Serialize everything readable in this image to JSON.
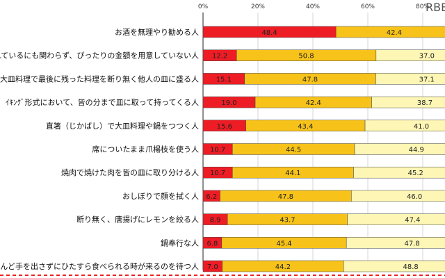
{
  "watermark": "RBB",
  "chart_data": {
    "type": "bar",
    "orientation": "horizontal",
    "stacked": true,
    "percent_stacked": true,
    "categories": [
      "お酒を無理やり勧める人",
      "れているにも関わらず、ぴったりの金額を用意していない人",
      "大皿料理で最後に残った料理を断り無く他人の皿に盛る人",
      "ｲｷﾝｸﾞ形式において、皆の分まで皿に取って持ってくる人",
      "直箸（じかばし）で大皿料理や鍋をつつく人",
      "席についたまま爪楊枝を使う人",
      "焼肉で焼けた肉を皆の皿に取り分ける人",
      "おしぼりで顔を拭く人",
      "断り無く、唐揚げにレモンを絞る人",
      "鍋奉行な人",
      "人※鍋奉行とは逆に、ほとんど手を出さずにひたすら食べられる時が来るのを待つ人"
    ],
    "series": [
      {
        "values": [
          48.4,
          12.2,
          15.1,
          19.0,
          15.6,
          10.7,
          10.7,
          6.2,
          8.9,
          6.8,
          7.0
        ]
      },
      {
        "values": [
          42.4,
          50.8,
          47.8,
          42.4,
          43.4,
          44.5,
          44.1,
          47.8,
          43.7,
          45.4,
          44.2
        ]
      },
      {
        "values": [
          null,
          37.0,
          37.1,
          38.7,
          41.0,
          44.9,
          45.2,
          46.0,
          47.4,
          47.8,
          48.8
        ]
      }
    ],
    "xticks": [
      "0%",
      "20%",
      "40%",
      "60%",
      "80%"
    ],
    "xlim": [
      0,
      100
    ],
    "colors": [
      "#ee1c25",
      "#f7c31a",
      "#fdf6b5"
    ],
    "grid": true
  }
}
